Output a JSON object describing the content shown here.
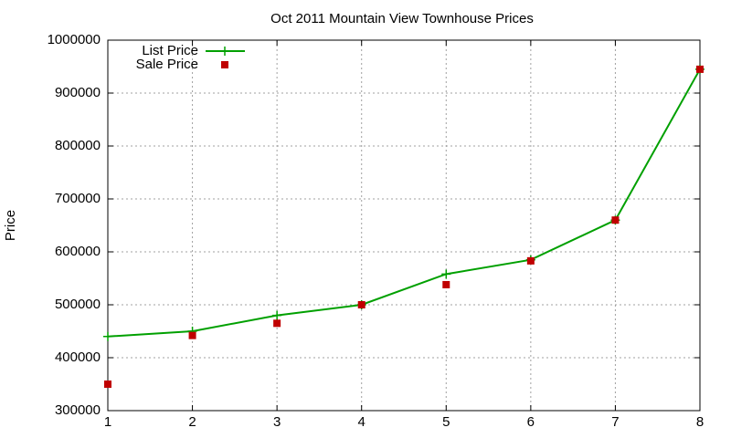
{
  "chart_data": {
    "type": "line",
    "title": "Oct 2011 Mountain View Townhouse Prices",
    "ylabel": "Price",
    "x": [
      1,
      2,
      3,
      4,
      5,
      6,
      7,
      8
    ],
    "series": [
      {
        "name": "List Price",
        "color": "#00a000",
        "mode": "lines+markers",
        "values": [
          440000,
          450000,
          480000,
          500000,
          558000,
          585000,
          660000,
          945000
        ]
      },
      {
        "name": "Sale Price",
        "color": "#c00000",
        "mode": "markers",
        "values": [
          350000,
          442000,
          465000,
          500000,
          538000,
          583000,
          660000,
          945000
        ]
      }
    ],
    "xlim": [
      1,
      8
    ],
    "xticks": [
      1,
      2,
      3,
      4,
      5,
      6,
      7,
      8
    ],
    "ylim": [
      300000,
      1000000
    ],
    "yticks": [
      300000,
      400000,
      500000,
      600000,
      700000,
      800000,
      900000,
      1000000
    ],
    "grid": true,
    "legend": "upper left"
  }
}
